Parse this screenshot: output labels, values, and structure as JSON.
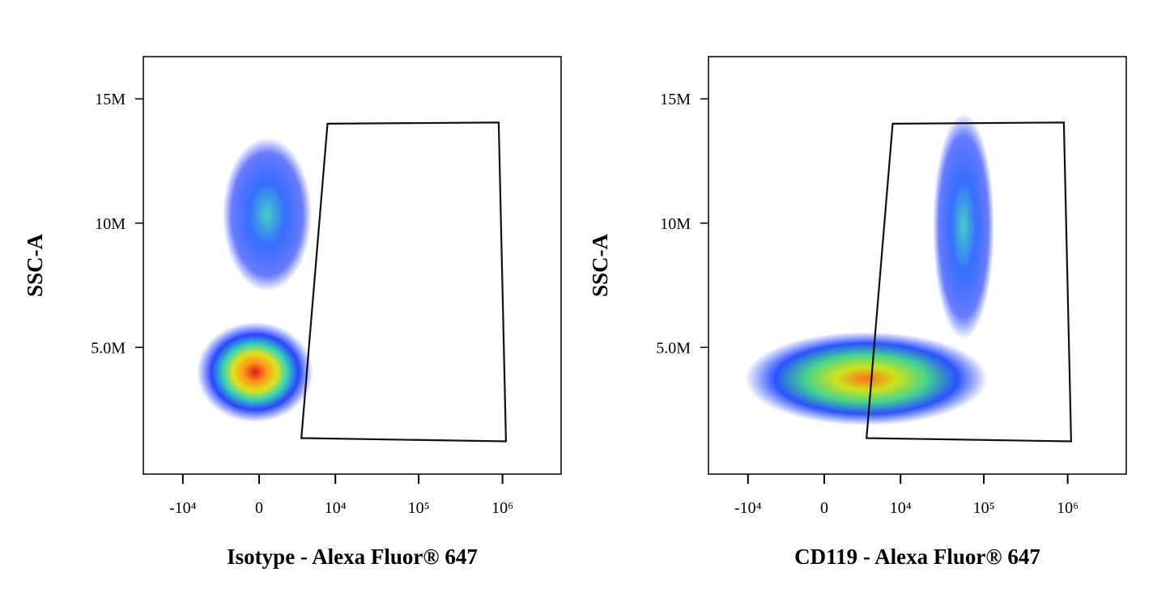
{
  "chart_data": [
    {
      "type": "scatter",
      "xscale": "arcsinh",
      "x_label": "Isotype - Alexa Fluor® 647",
      "y_label": "SSC-A",
      "xlim": [
        -30000,
        5000000
      ],
      "ylim": [
        -100000,
        16700000
      ],
      "xticks": [
        {
          "value": -10000,
          "label": "-10⁴"
        },
        0,
        {
          "value": 10000,
          "label": "10⁴"
        },
        {
          "value": 100000,
          "label": "10⁵"
        },
        {
          "value": 1000000,
          "label": "10⁶"
        }
      ],
      "yticks": [
        {
          "value": 5000000,
          "label": "5.0M"
        },
        {
          "value": 10000000,
          "label": "10M"
        },
        {
          "value": 15000000,
          "label": "15M"
        }
      ],
      "gate": {
        "x": [
          8000,
          900000,
          1100000,
          3600
        ],
        "y": [
          14000000,
          14050000,
          1220000,
          1350000
        ]
      }
    },
    {
      "type": "scatter",
      "xscale": "arcsinh",
      "x_label": "CD119 - Alexa Fluor® 647",
      "y_label": "SSC-A",
      "xlim": [
        -30000,
        5000000
      ],
      "ylim": [
        -100000,
        16700000
      ],
      "xticks": [
        {
          "value": -10000,
          "label": "-10⁴"
        },
        0,
        {
          "value": 10000,
          "label": "10⁴"
        },
        {
          "value": 100000,
          "label": "10⁵"
        },
        {
          "value": 1000000,
          "label": "10⁶"
        }
      ],
      "yticks": [
        {
          "value": 5000000,
          "label": "5.0M"
        },
        {
          "value": 10000000,
          "label": "10M"
        },
        {
          "value": 15000000,
          "label": "15M"
        }
      ],
      "gate": {
        "x": [
          8000,
          900000,
          1100000,
          3600
        ],
        "y": [
          14000000,
          14050000,
          1220000,
          1350000
        ]
      }
    }
  ]
}
